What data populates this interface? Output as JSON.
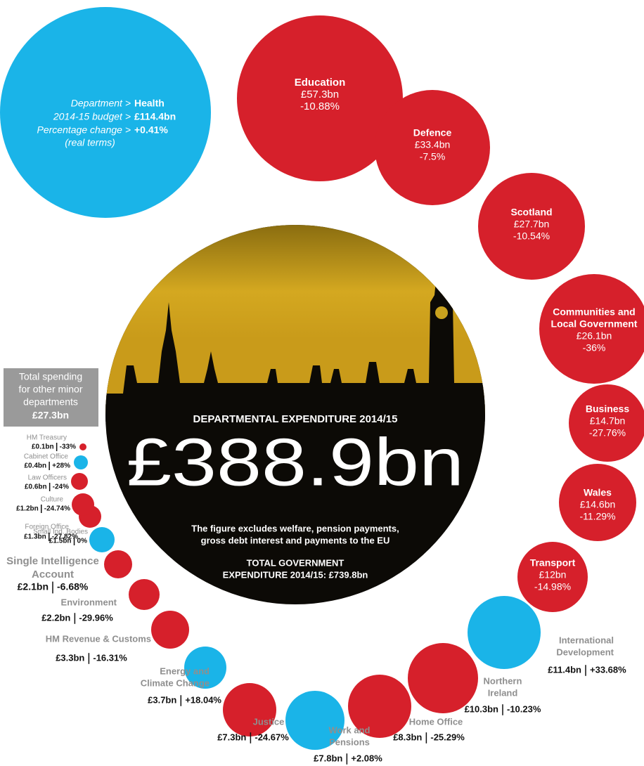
{
  "health": {
    "department_label": "Department >",
    "department": "Health",
    "budget_label": "2014-15 budget >",
    "budget": "£114.4bn",
    "change_label": "Percentage change >",
    "change": "+0.41%",
    "note": "(real terms)"
  },
  "center": {
    "heading": "DEPARTMENTAL EXPENDITURE 2014/15",
    "total": "£388.9bn",
    "note": [
      "The figure excludes welfare, pension payments,",
      "gross debt interest and payments to the EU"
    ],
    "government_total": [
      "TOTAL GOVERNMENT",
      "EXPENDITURE 2014/15: £739.8bn"
    ]
  },
  "minor": {
    "label": [
      "Total spending",
      "for other minor",
      "departments"
    ],
    "total": "£27.3bn"
  },
  "departments": [
    {
      "name": [
        "Education"
      ],
      "budget": "£57.3bn",
      "change": "-10.88%"
    },
    {
      "name": [
        "Defence"
      ],
      "budget": "£33.4bn",
      "change": "-7.5%"
    },
    {
      "name": [
        "Scotland"
      ],
      "budget": "£27.7bn",
      "change": "-10.54%"
    },
    {
      "name": [
        "Communities and",
        "Local Government"
      ],
      "budget": "£26.1bn",
      "change": "-36%"
    },
    {
      "name": [
        "Business"
      ],
      "budget": "£14.7bn",
      "change": "-27.76%"
    },
    {
      "name": [
        "Wales"
      ],
      "budget": "£14.6bn",
      "change": "-11.29%"
    },
    {
      "name": [
        "Transport"
      ],
      "budget": "£12bn",
      "change": "-14.98%"
    },
    {
      "name": [
        "International",
        "Development"
      ],
      "budget": "£11.4bn",
      "change": "+33.68%"
    },
    {
      "name": [
        "Northern",
        "Ireland"
      ],
      "budget": "£10.3bn",
      "change": "-10.23%"
    },
    {
      "name": [
        "Home Office"
      ],
      "budget": "£8.3bn",
      "change": "-25.29%"
    },
    {
      "name": [
        "Work and",
        "Pensions"
      ],
      "budget": "£7.8bn",
      "change": "+2.08%"
    },
    {
      "name": [
        "Justice"
      ],
      "budget": "£7.3bn",
      "change": "-24.67%"
    },
    {
      "name": [
        "Energy and",
        "Climate Change"
      ],
      "budget": "£3.7bn",
      "change": "+18.04%"
    },
    {
      "name": [
        "HM Revenue & Customs"
      ],
      "budget": "£3.3bn",
      "change": "-16.31%"
    },
    {
      "name": [
        "Environment"
      ],
      "budget": "£2.2bn",
      "change": "-29.96%"
    },
    {
      "name": [
        "Single Intelligence",
        "Account"
      ],
      "budget": "£2.1bn",
      "change": "-6.68%"
    },
    {
      "name": [
        "Small Ind. Bodies"
      ],
      "budget": "£1.5bn",
      "change": "0%"
    },
    {
      "name": [
        "Foreign Office"
      ],
      "budget": "£1.3bn",
      "change": "-27.82%"
    },
    {
      "name": [
        "Culture"
      ],
      "budget": "£1.2bn",
      "change": "-24.74%"
    },
    {
      "name": [
        "Law Officers"
      ],
      "budget": "£0.6bn",
      "change": "-24%"
    },
    {
      "name": [
        "Cabinet Office"
      ],
      "budget": "£0.4bn",
      "change": "+28%"
    },
    {
      "name": [
        "HM Treasury"
      ],
      "budget": "£0.1bn",
      "change": "-33%"
    }
  ]
}
